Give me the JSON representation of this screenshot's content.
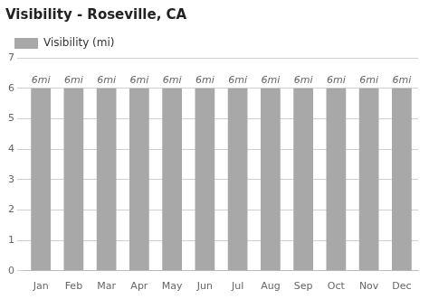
{
  "chart_data": {
    "type": "bar",
    "title": "Visibility - Roseville, CA",
    "categories": [
      "Jan",
      "Feb",
      "Mar",
      "Apr",
      "May",
      "Jun",
      "Jul",
      "Aug",
      "Sep",
      "Oct",
      "Nov",
      "Dec"
    ],
    "series": [
      {
        "name": "Visibility (mi)",
        "color": "#a8a8a8",
        "values": [
          6,
          6,
          6,
          6,
          6,
          6,
          6,
          6,
          6,
          6,
          6,
          6
        ],
        "value_labels": [
          "6mi",
          "6mi",
          "6mi",
          "6mi",
          "6mi",
          "6mi",
          "6mi",
          "6mi",
          "6mi",
          "6mi",
          "6mi",
          "6mi"
        ]
      }
    ],
    "ylim": [
      0,
      7
    ],
    "yticks": [
      0,
      1,
      2,
      3,
      4,
      5,
      6,
      7
    ],
    "grid": true,
    "legend": "top left",
    "data_labels": true
  }
}
